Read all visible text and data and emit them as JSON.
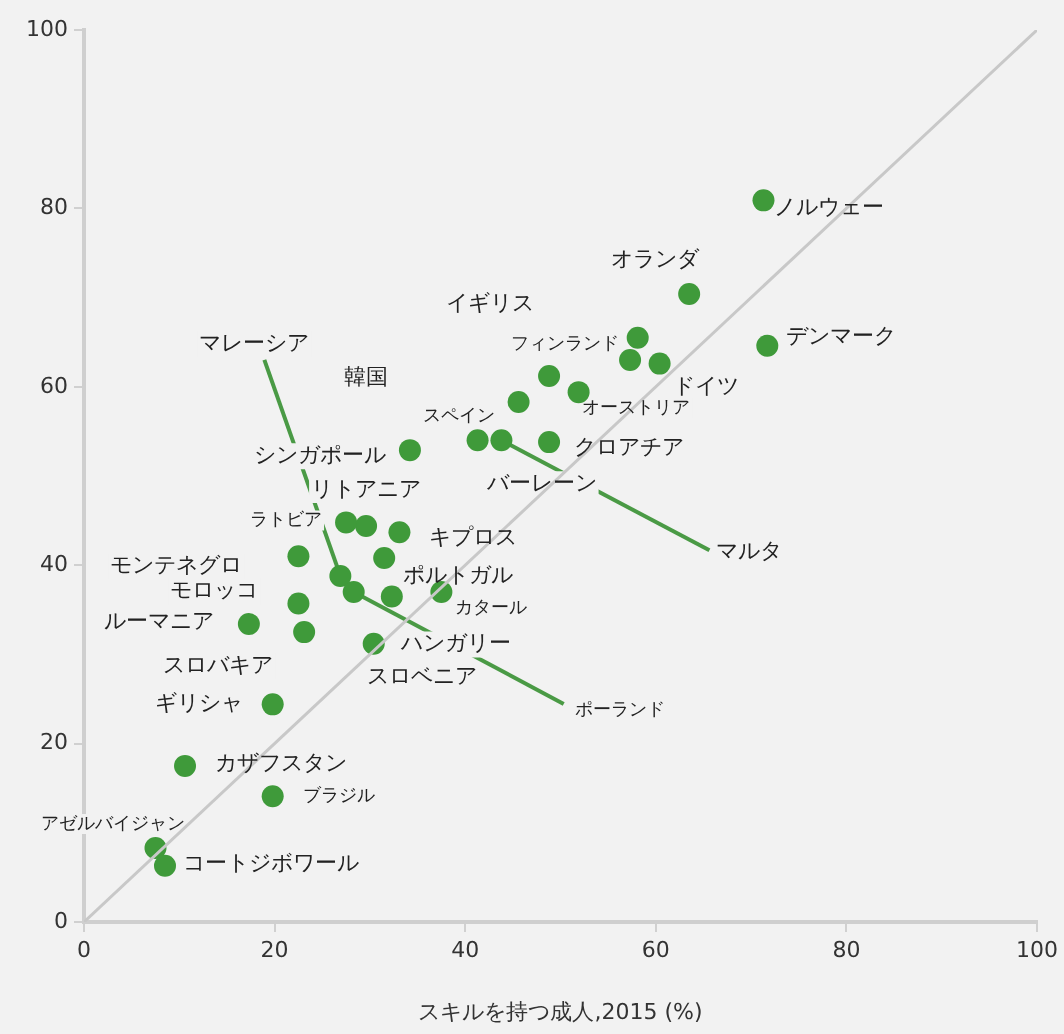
{
  "chart_data": {
    "type": "scatter",
    "xlabel": "スキルを持つ成人,2015 (%)",
    "xlim": [
      0,
      100
    ],
    "xticks": [
      0,
      20,
      40,
      60,
      80,
      100
    ],
    "ylim": [
      0,
      100
    ],
    "yticks": [
      0,
      20,
      40,
      60,
      80,
      100
    ],
    "grid": false,
    "legend": false,
    "marker": "circle",
    "series": [
      {
        "color": "#c8c8c8",
        "type": "line",
        "marker": "none",
        "x": [
          0,
          100
        ],
        "values": [
          0,
          100
        ]
      },
      {
        "color": "#3f9a3a",
        "x": [
          71.3,
          63.5,
          71.7,
          58.1,
          48.8,
          60.4,
          57.3,
          51.9,
          41.3,
          48.8,
          43.8,
          45.6,
          34.2,
          29.6,
          27.5,
          33.1,
          22.5,
          31.5,
          26.9,
          22.5,
          37.5,
          17.3,
          28.3,
          32.3,
          30.4,
          23.1,
          19.8,
          10.6,
          19.8,
          7.5,
          8.5
        ],
        "values": [
          80.9,
          70.4,
          64.6,
          65.5,
          61.2,
          62.6,
          63.0,
          59.4,
          54.0,
          53.8,
          54.0,
          58.3,
          52.9,
          44.4,
          44.8,
          43.7,
          41.0,
          40.8,
          38.8,
          35.7,
          37.0,
          33.4,
          37.0,
          36.5,
          31.2,
          32.5,
          24.4,
          17.5,
          14.1,
          8.3,
          6.3
        ]
      }
    ],
    "annotations": [
      {
        "text": "ノルウェー",
        "x": 71.3,
        "y": 80.9
      },
      {
        "text": "オランダ",
        "x": 63.5,
        "y": 70.4
      },
      {
        "text": "デンマーク",
        "x": 71.7,
        "y": 64.6
      },
      "イギリス",
      {
        "text": "フィンランド",
        "x": 48.8,
        "y": 61.2
      },
      {
        "text": "ドイツ",
        "x": 60.4,
        "y": 62.6
      },
      {
        "text": "オーストリア",
        "x": 57.3,
        "y": 63.0
      },
      "韓国",
      {
        "text": "バーレーン",
        "x": 41.3,
        "y": 54.0
      },
      {
        "text": "クロアチア",
        "x": 48.8,
        "y": 53.8
      },
      {
        "text": "マルタ",
        "x": 43.8,
        "y": 54.0
      },
      {
        "text": "スペイン",
        "x": 45.6,
        "y": 58.3
      },
      {
        "text": "シンガポール",
        "x": 34.2,
        "y": 52.9
      },
      {
        "text": "リトアニア",
        "x": 29.6,
        "y": 44.4
      },
      {
        "text": "ラトビア",
        "x": 27.5,
        "y": 44.8
      },
      {
        "text": "キプロス",
        "x": 33.1,
        "y": 43.7
      },
      {
        "text": "モンテネグロ",
        "x": 22.5,
        "y": 41.0
      },
      {
        "text": "ポルトガル",
        "x": 31.5,
        "y": 40.8
      },
      {
        "text": "マレーシア",
        "x": 26.9,
        "y": 38.8
      },
      {
        "text": "モロッコ",
        "x": 22.5,
        "y": 35.7
      },
      {
        "text": "カタール",
        "x": 37.5,
        "y": 37.0
      },
      {
        "text": "ルーマニア",
        "x": 17.3,
        "y": 33.4
      },
      {
        "text": "ポーランド",
        "x": 28.3,
        "y": 37.0
      },
      {
        "text": "ハンガリー",
        "x": 32.3,
        "y": 36.5
      },
      {
        "text": "スロベニア",
        "x": 30.4,
        "y": 31.2
      },
      {
        "text": "スロバキア",
        "x": 23.1,
        "y": 32.5
      },
      {
        "text": "ギリシャ",
        "x": 19.8,
        "y": 24.4
      },
      {
        "text": "カザフスタン",
        "x": 10.6,
        "y": 17.5
      },
      {
        "text": "ブラジル",
        "x": 19.8,
        "y": 14.1
      },
      {
        "text": "アゼルバイジャン",
        "x": 7.5,
        "y": 8.3
      },
      {
        "text": "コートジボワール",
        "x": 8.5,
        "y": 6.3
      }
    ]
  }
}
